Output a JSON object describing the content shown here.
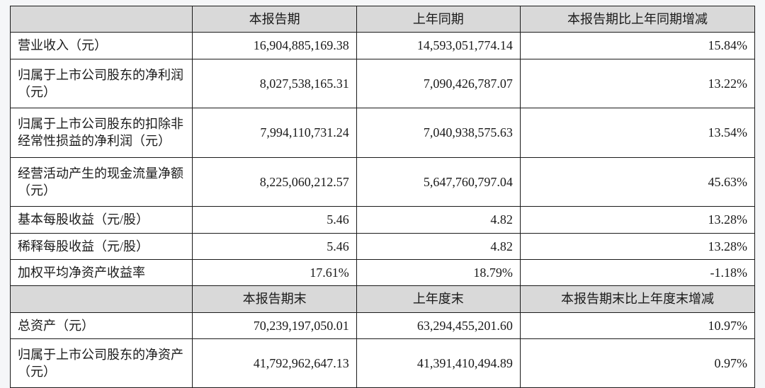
{
  "table": {
    "colors": {
      "header_bg": "#d9d9d9",
      "cell_bg": "#ffffff",
      "border": "#1a1a1a",
      "text": "#1a1a1a",
      "page_bg": "#f5f6f8"
    },
    "font": {
      "family": "SimSun",
      "size_pt": 14
    },
    "column_widths_pct": [
      24.5,
      22,
      22,
      31.5
    ],
    "header1": {
      "c0": "",
      "c1": "本报告期",
      "c2": "上年同期",
      "c3": "本报告期比上年同期增减"
    },
    "rows1": [
      {
        "label": "营业收入（元）",
        "v1": "16,904,885,169.38",
        "v2": "14,593,051,774.14",
        "v3": "15.84%"
      },
      {
        "label": "归属于上市公司股东的净利润（元）",
        "v1": "8,027,538,165.31",
        "v2": "7,090,426,787.07",
        "v3": "13.22%"
      },
      {
        "label": "归属于上市公司股东的扣除非经常性损益的净利润（元）",
        "v1": "7,994,110,731.24",
        "v2": "7,040,938,575.63",
        "v3": "13.54%"
      },
      {
        "label": "经营活动产生的现金流量净额（元）",
        "v1": "8,225,060,212.57",
        "v2": "5,647,760,797.04",
        "v3": "45.63%"
      },
      {
        "label": "基本每股收益（元/股）",
        "v1": "5.46",
        "v2": "4.82",
        "v3": "13.28%"
      },
      {
        "label": "稀释每股收益（元/股）",
        "v1": "5.46",
        "v2": "4.82",
        "v3": "13.28%"
      },
      {
        "label": "加权平均净资产收益率",
        "v1": "17.61%",
        "v2": "18.79%",
        "v3": "-1.18%"
      }
    ],
    "header2": {
      "c0": "",
      "c1": "本报告期末",
      "c2": "上年度末",
      "c3": "本报告期末比上年度末增减"
    },
    "rows2": [
      {
        "label": "总资产（元）",
        "v1": "70,239,197,050.01",
        "v2": "63,294,455,201.60",
        "v3": "10.97%"
      },
      {
        "label": "归属于上市公司股东的净资产（元）",
        "v1": "41,792,962,647.13",
        "v2": "41,391,410,494.89",
        "v3": "0.97%"
      }
    ]
  }
}
